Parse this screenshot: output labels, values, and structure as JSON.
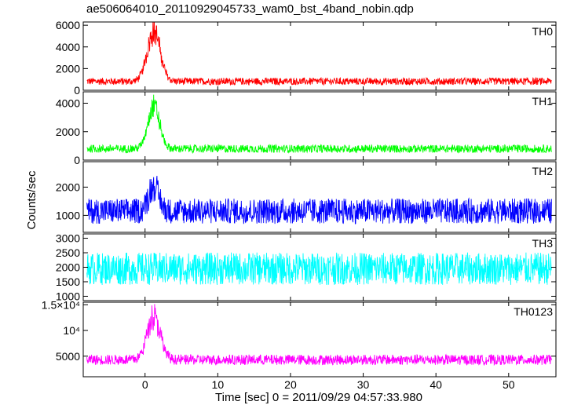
{
  "title": "ae506064010_20110929045733_wam0_bst_4band_nobin.qdp",
  "xlabel": "Time [sec] 0 = 2011/09/29 04:57:33.980",
  "ylabel": "Counts/sec",
  "chart_data": {
    "type": "line",
    "x_range": [
      -8.5,
      56.5
    ],
    "x_ticks": [
      0,
      10,
      20,
      30,
      40,
      50
    ],
    "x_tick_labels": [
      "0",
      "10",
      "20",
      "30",
      "40",
      "50"
    ],
    "panels": [
      {
        "name": "TH0",
        "color": "#ff0000",
        "y_range": [
          0,
          6300
        ],
        "y_ticks": [
          0,
          2000,
          4000,
          6000
        ],
        "y_tick_labels": [
          "0",
          "2000",
          "4000",
          "6000"
        ],
        "baseline": 820,
        "noise": 330,
        "peak": {
          "time": 1.2,
          "height": 4600,
          "width": 0.9,
          "center_value": 5000
        }
      },
      {
        "name": "TH1",
        "color": "#00ff00",
        "y_range": [
          0,
          4800
        ],
        "y_ticks": [
          0,
          2000,
          4000
        ],
        "y_tick_labels": [
          "0",
          "2000",
          "4000"
        ],
        "baseline": 800,
        "noise": 280,
        "peak": {
          "time": 1.2,
          "height": 3000,
          "width": 0.8,
          "center_value": 3600
        }
      },
      {
        "name": "TH2",
        "color": "#0000ff",
        "y_range": [
          400,
          2900
        ],
        "y_ticks": [
          1000,
          2000
        ],
        "y_tick_labels": [
          "1000",
          "2000"
        ],
        "baseline": 1150,
        "noise": 450,
        "peak": {
          "time": 1.2,
          "height": 900,
          "width": 0.7,
          "center_value": 2200
        }
      },
      {
        "name": "TH3",
        "color": "#00ffff",
        "y_range": [
          850,
          3150
        ],
        "y_ticks": [
          1000,
          1500,
          2000,
          2500,
          3000
        ],
        "y_tick_labels": [
          "1000",
          "1500",
          "2000",
          "2500",
          "3000"
        ],
        "baseline": 1950,
        "noise": 560,
        "peak": null
      },
      {
        "name": "TH0123",
        "color": "#ff00ff",
        "y_range": [
          1000,
          15500
        ],
        "y_ticks": [
          5000,
          10000,
          15000
        ],
        "y_tick_labels": [
          "5000",
          "10⁴",
          "1.5×10⁴"
        ],
        "baseline": 4300,
        "noise": 1000,
        "peak": {
          "time": 1.2,
          "height": 8500,
          "width": 0.9,
          "center_value": 12000
        }
      }
    ]
  }
}
